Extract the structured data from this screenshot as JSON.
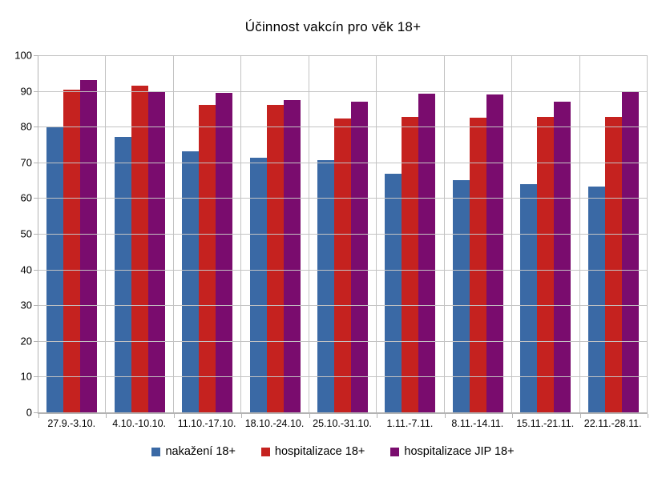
{
  "chart_data": {
    "type": "bar",
    "title": "Účinnost vakcín pro věk 18+",
    "categories": [
      "27.9.-3.10.",
      "4.10.-10.10.",
      "11.10.-17.10.",
      "18.10.-24.10.",
      "25.10.-31.10.",
      "1.11.-7.11.",
      "8.11.-14.11.",
      "15.11.-21.11.",
      "22.11.-28.11."
    ],
    "series": [
      {
        "name": "nakažení 18+",
        "color": "#3a69a5",
        "values": [
          79.8,
          77.2,
          73.0,
          71.2,
          70.6,
          66.8,
          65.0,
          64.0,
          63.3
        ]
      },
      {
        "name": "hospitalizace 18+",
        "color": "#c5221f",
        "values": [
          90.3,
          91.4,
          86.0,
          86.0,
          82.3,
          82.7,
          82.5,
          82.7,
          82.7
        ]
      },
      {
        "name": "hospitalizace JIP 18+",
        "color": "#7a0c6e",
        "values": [
          93.0,
          90.0,
          89.5,
          87.5,
          87.0,
          89.3,
          89.0,
          87.0,
          89.8
        ]
      }
    ],
    "xlabel": "",
    "ylabel": "",
    "ylim": [
      0,
      100
    ],
    "ytick_step": 10,
    "grid": true,
    "legend_position": "bottom",
    "grid_color": "#c3c3c3",
    "axis_color": "#b3b3b3",
    "background": "#ffffff"
  }
}
